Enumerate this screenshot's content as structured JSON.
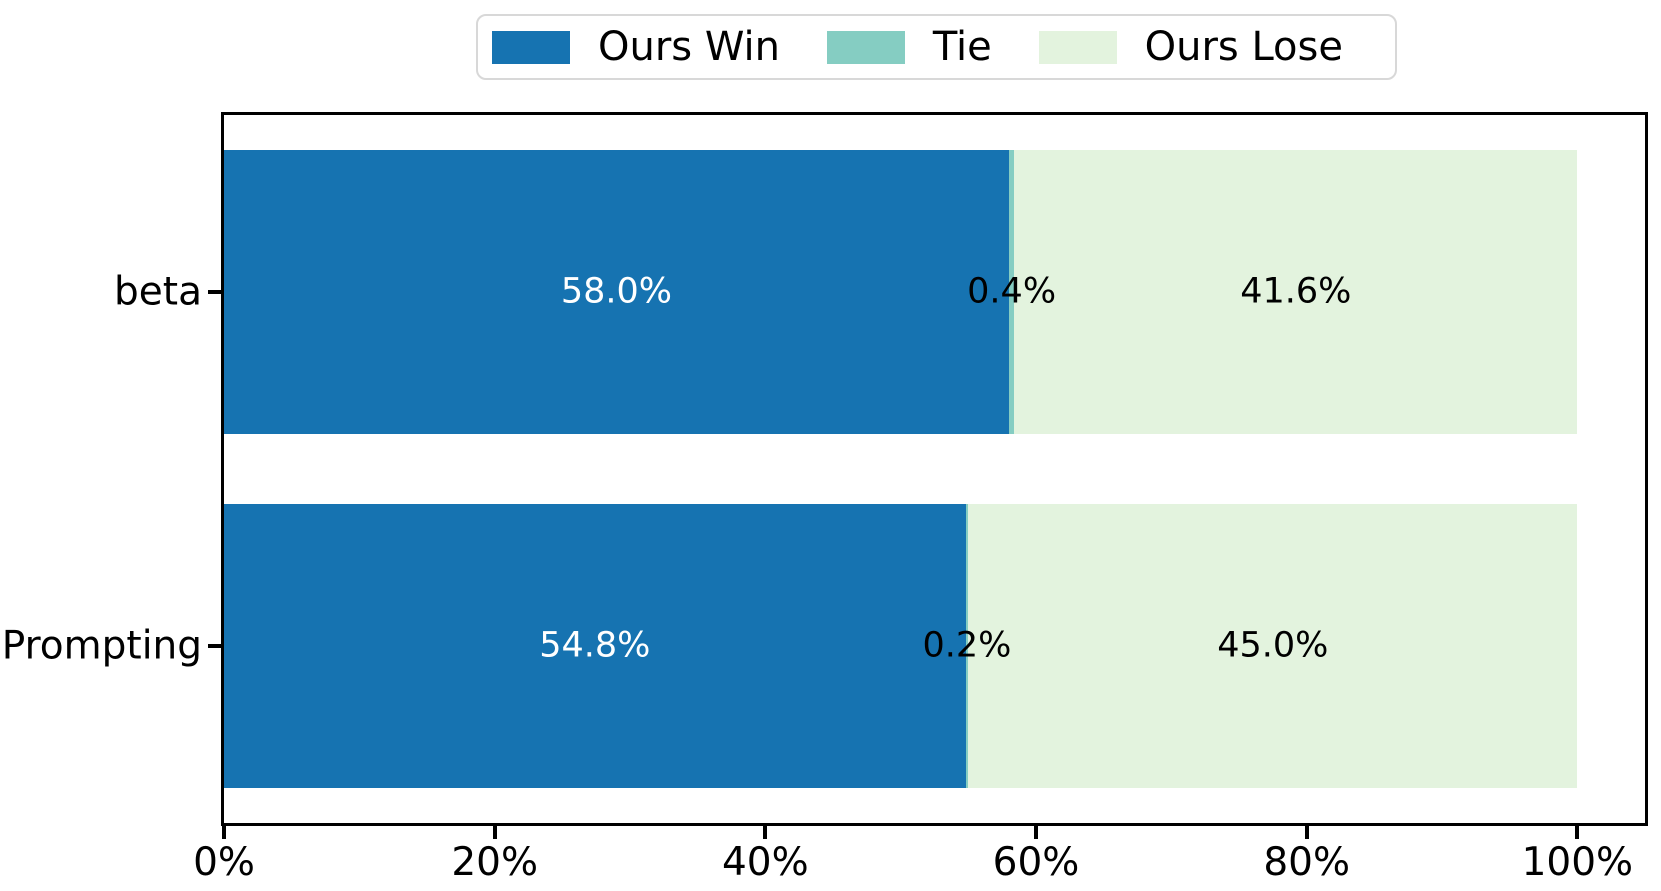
{
  "chart_data": {
    "type": "bar",
    "orientation": "horizontal",
    "stacked": true,
    "title": "",
    "xlabel": "",
    "ylabel": "",
    "categories": [
      "beta",
      "Prompting"
    ],
    "series": [
      {
        "name": "Ours Win",
        "color": "#1673b1",
        "label_color": "#ffffff",
        "values": [
          58.0,
          54.8
        ]
      },
      {
        "name": "Tie",
        "color": "#85cdc2",
        "label_color": "#000000",
        "values": [
          0.4,
          0.2
        ]
      },
      {
        "name": "Ours Lose",
        "color": "#e3f3de",
        "label_color": "#000000",
        "values": [
          41.6,
          45.0
        ]
      }
    ],
    "segment_labels": [
      [
        "58.0%",
        "0.4%",
        "41.6%"
      ],
      [
        "54.8%",
        "0.2%",
        "45.0%"
      ]
    ],
    "x_tick_labels": [
      "0%",
      "20%",
      "40%",
      "60%",
      "80%",
      "100%"
    ],
    "x_tick_values": [
      0,
      20,
      40,
      60,
      80,
      100
    ],
    "xlim": [
      0,
      105
    ],
    "bar_thickness_fraction": 0.4,
    "grid": false,
    "legend_position": "top",
    "legend_entries": [
      "Ours Win",
      "Tie",
      "Ours Lose"
    ]
  },
  "colors": {
    "background": "#ffffff",
    "axis": "#000000",
    "tick_text": "#000000",
    "legend_border": "#d8d8d8",
    "ours_win": "#1673b1",
    "tie": "#85cdc2",
    "ours_lose": "#e3f3de",
    "label_on_win": "#ffffff",
    "label_default": "#000000"
  }
}
